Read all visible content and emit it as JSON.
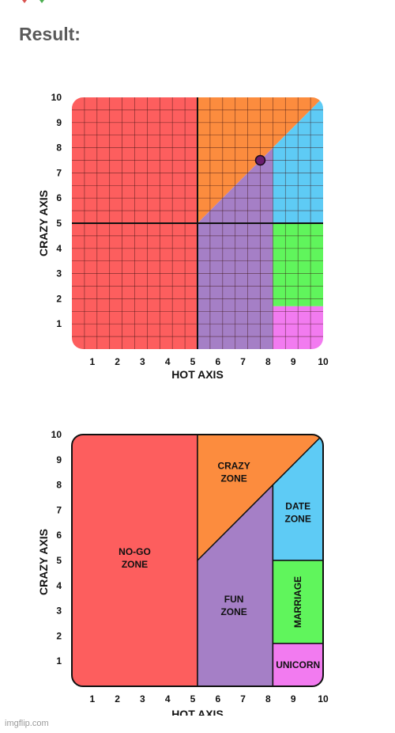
{
  "result_label": "Result:",
  "watermark": "imgflip.com",
  "chart_data": [
    {
      "type": "scatter",
      "xlabel": "HOT AXIS",
      "ylabel": "CRAZY AXIS",
      "xlim": [
        0,
        10
      ],
      "ylim": [
        0,
        10
      ],
      "x_ticks": [
        "1",
        "2",
        "3",
        "4",
        "5",
        "6",
        "7",
        "8",
        "9",
        "10"
      ],
      "y_ticks": [
        "1",
        "2",
        "3",
        "4",
        "5",
        "6",
        "7",
        "8",
        "9",
        "10"
      ],
      "grid": true,
      "point": {
        "x": 7.5,
        "y": 7.5,
        "color": "#6b1e6e"
      },
      "zone_colors": {
        "red": "#fd5e5e",
        "orange": "#fc8c3e",
        "purple": "#a57fc6",
        "blue": "#5ecbf5",
        "green": "#60f55c",
        "pink": "#f27bf0"
      }
    },
    {
      "type": "area",
      "xlabel": "HOT AXIS",
      "ylabel": "CRAZY AXIS",
      "xlim": [
        0,
        10
      ],
      "ylim": [
        0,
        10
      ],
      "x_ticks": [
        "1",
        "2",
        "3",
        "4",
        "5",
        "6",
        "7",
        "8",
        "9",
        "10"
      ],
      "y_ticks": [
        "1",
        "2",
        "3",
        "4",
        "5",
        "6",
        "7",
        "8",
        "9",
        "10"
      ],
      "grid": false,
      "zones": [
        {
          "lines": [
            "NO-GO",
            "ZONE"
          ],
          "color": "#fd5e5e"
        },
        {
          "lines": [
            "CRAZY",
            "ZONE"
          ],
          "color": "#fc8c3e"
        },
        {
          "lines": [
            "FUN",
            "ZONE"
          ],
          "color": "#a57fc6"
        },
        {
          "lines": [
            "DATE",
            "ZONE"
          ],
          "color": "#5ecbf5"
        },
        {
          "lines": [
            "MARRIAGE"
          ],
          "color": "#60f55c"
        },
        {
          "lines": [
            "UNICORN"
          ],
          "color": "#f27bf0"
        }
      ]
    }
  ]
}
